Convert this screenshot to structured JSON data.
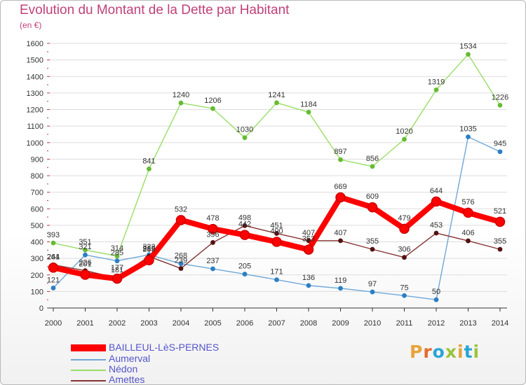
{
  "title": "Evolution du Montant de la Dette par Habitant",
  "subtitle": "(en €)",
  "logo": {
    "text": "Proxiti",
    "colors": [
      "#e8a33a",
      "#e56b2c",
      "#2aa5d6",
      "#9ac43c",
      "#e8a33a",
      "#2aa5d6",
      "#9ac43c"
    ]
  },
  "chart_data": {
    "type": "line",
    "title": "Evolution du Montant de la Dette par Habitant",
    "ylabel": "(en €)",
    "xlabel": "",
    "ylim": [
      0,
      1600
    ],
    "y_ticks": [
      0,
      100,
      200,
      300,
      400,
      500,
      600,
      700,
      800,
      900,
      1000,
      1100,
      1200,
      1300,
      1400,
      1500,
      1600
    ],
    "x": [
      "2000",
      "2001",
      "2002",
      "2003",
      "2004",
      "2005",
      "2006",
      "2007",
      "2008",
      "2009",
      "2010",
      "2011",
      "2012",
      "2013",
      "2014"
    ],
    "grid": "horizontal",
    "legend_position": "bottom-left",
    "series": [
      {
        "name": "BAILLEUL-LèS-PERNES",
        "color": "#ff0000",
        "point_color": "#cc0000",
        "thick": true,
        "values": [
          244,
          201,
          177,
          289,
          532,
          478,
          442,
          400,
          353,
          669,
          609,
          479,
          644,
          576,
          521
        ]
      },
      {
        "name": "Aumerval",
        "color": "#6fa8d8",
        "point_color": "#2b7fc4",
        "thick": false,
        "values": [
          121,
          321,
          285,
          322,
          268,
          237,
          205,
          171,
          136,
          119,
          97,
          75,
          50,
          1035,
          945
        ]
      },
      {
        "name": "Nédon",
        "color": "#99dd66",
        "point_color": "#66bb33",
        "thick": false,
        "values": [
          393,
          351,
          314,
          841,
          1240,
          1206,
          1030,
          1241,
          1184,
          897,
          856,
          1020,
          1319,
          1534,
          1226
        ]
      },
      {
        "name": "Amettes",
        "color": "#883333",
        "point_color": "#551111",
        "thick": false,
        "values": [
          261,
          226,
          181,
          312,
          239,
          396,
          498,
          451,
          407,
          407,
          355,
          306,
          453,
          406,
          355
        ]
      }
    ]
  }
}
